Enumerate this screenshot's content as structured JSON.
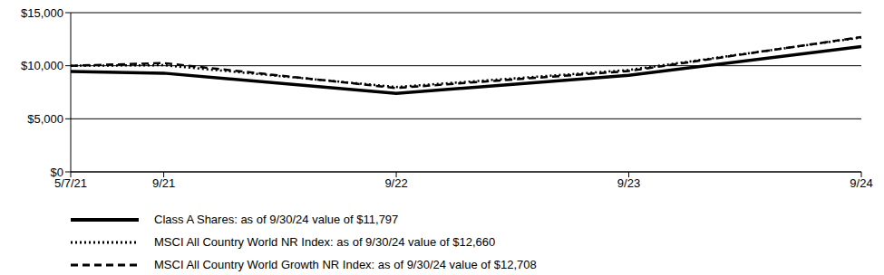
{
  "chart_data": {
    "type": "line",
    "x": [
      2021.35,
      2021.75,
      2022.75,
      2023.75,
      2024.75
    ],
    "xlim": [
      2021.35,
      2024.75
    ],
    "xticks": [
      {
        "value": 2021.35,
        "label": "5/7/21"
      },
      {
        "value": 2021.75,
        "label": "9/21"
      },
      {
        "value": 2022.75,
        "label": "9/22"
      },
      {
        "value": 2023.75,
        "label": "9/23"
      },
      {
        "value": 2024.75,
        "label": "9/24"
      }
    ],
    "ylim": [
      0,
      15000
    ],
    "yticks": [
      {
        "value": 0,
        "label": "$0"
      },
      {
        "value": 5000,
        "label": "$5,000"
      },
      {
        "value": 10000,
        "label": "$10,000"
      },
      {
        "value": 15000,
        "label": "$15,000"
      }
    ],
    "grid": true,
    "legend": "bottom",
    "series": [
      {
        "name": "Class A Shares: as of 9/30/24 value of $11,797",
        "color": "#000000",
        "line_style": "solid",
        "values": [
          9450,
          9300,
          7400,
          9100,
          11797
        ]
      },
      {
        "name": "MSCI All Country World NR Index: as of 9/30/24 value of $12,660",
        "color": "#000000",
        "line_style": "dotted",
        "values": [
          10000,
          10050,
          8000,
          9600,
          12660
        ]
      },
      {
        "name": "MSCI All Country World Growth NR Index: as of 9/30/24 value of $12,708",
        "color": "#000000",
        "line_style": "dashed",
        "values": [
          10000,
          10250,
          7900,
          9500,
          12708
        ]
      }
    ]
  }
}
